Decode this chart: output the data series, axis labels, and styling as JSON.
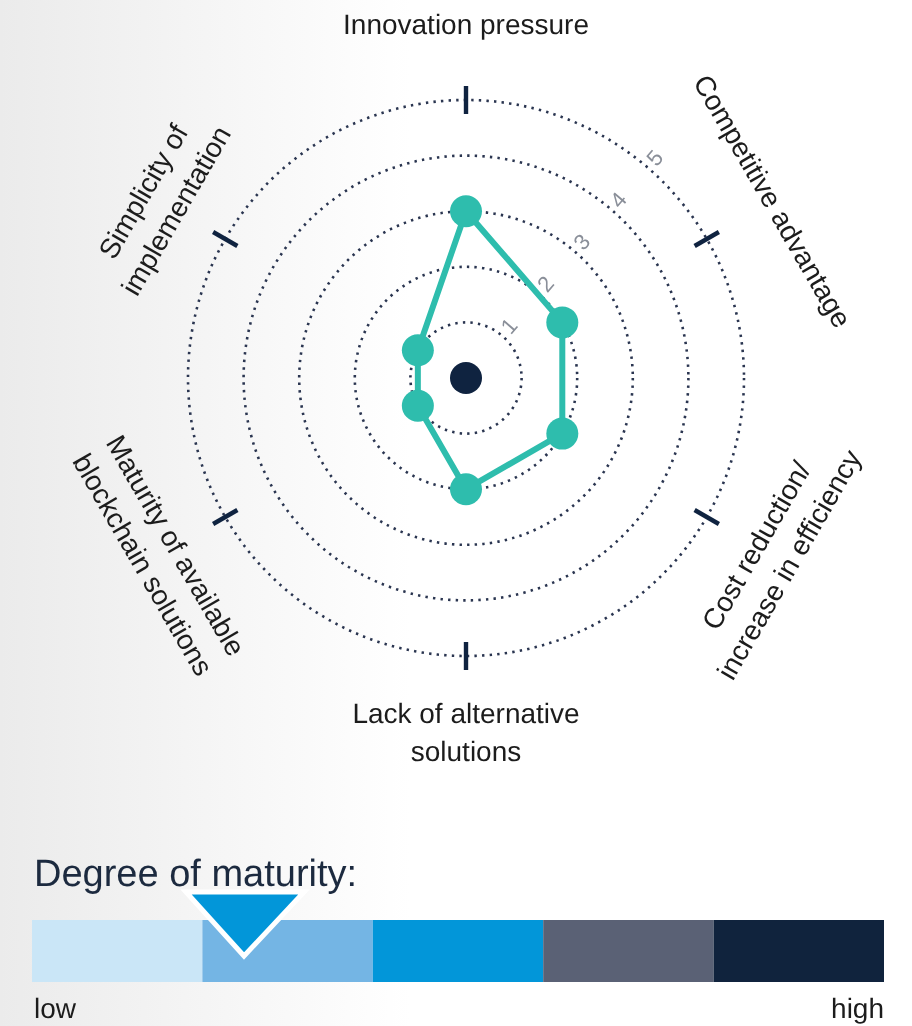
{
  "chart_data": {
    "type": "radar",
    "categories": [
      "Innovation pressure",
      "Competitive advantage",
      "Cost reduction/ increase in efficiency",
      "Lack of alternative solutions",
      "Maturity of available blockchain solutions",
      "Simplicity of implementation"
    ],
    "series": [
      {
        "color": "#2ebdad",
        "values": [
          3,
          2,
          2,
          2,
          1,
          1
        ]
      }
    ],
    "ylim": [
      0,
      5
    ],
    "yticks": [
      1,
      2,
      3,
      4,
      5
    ],
    "marker": "circle",
    "grid": true,
    "annotations": [
      "Degree of maturity:",
      "low",
      "high"
    ]
  }
}
